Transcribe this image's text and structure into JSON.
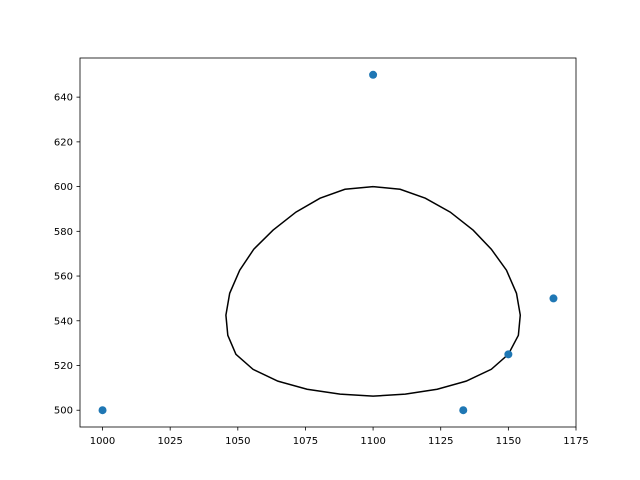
{
  "chart_data": {
    "type": "scatter",
    "series": [
      {
        "type": "line",
        "color": "#000000",
        "x": [
          1100,
          1110,
          1119.3,
          1128.5,
          1137,
          1143.7,
          1149.3,
          1153,
          1154.4,
          1153.7,
          1150,
          1143.7,
          1134.4,
          1123.7,
          1111.9,
          1100,
          1087.8,
          1075.6,
          1064.8,
          1055.6,
          1049.3,
          1046.3,
          1045.6,
          1047,
          1050.7,
          1055.9,
          1063,
          1071.5,
          1080.4,
          1089.6,
          1100
        ],
        "values": [
          600,
          598.8,
          594.8,
          588.6,
          580.5,
          572,
          562.6,
          552.3,
          542.5,
          533.5,
          525,
          518.3,
          513,
          509.4,
          507.2,
          506.3,
          507.2,
          509.4,
          513,
          518.3,
          525,
          533.5,
          542.5,
          552.3,
          562.6,
          572,
          580.5,
          588.6,
          594.8,
          598.8,
          600
        ]
      },
      {
        "type": "scatter",
        "color": "#1f77b4",
        "x": [
          1000,
          1100,
          1166.67,
          1150,
          1133.33
        ],
        "values": [
          500,
          650,
          550,
          525,
          500
        ]
      }
    ],
    "xlim": [
      991.67,
      1175
    ],
    "xticks": [
      1000,
      1025,
      1050,
      1075,
      1100,
      1125,
      1150,
      1175
    ],
    "ylim": [
      492.5,
      657.5
    ],
    "yticks": [
      500,
      520,
      540,
      560,
      580,
      600,
      620,
      640
    ],
    "grid": false
  }
}
